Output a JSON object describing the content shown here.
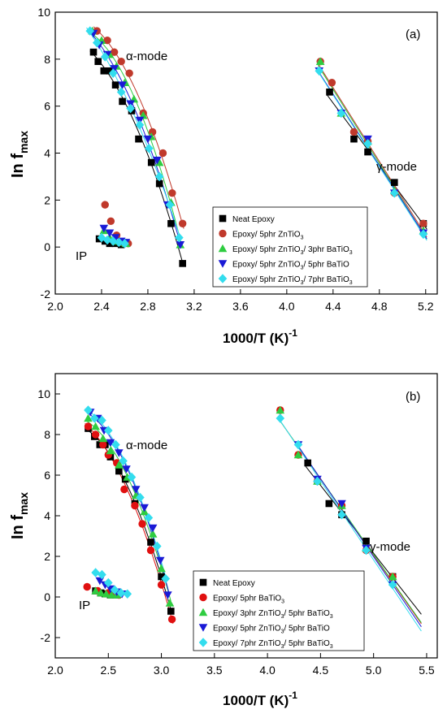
{
  "charts": [
    {
      "panel_label": "(a)",
      "ylabel": "In f",
      "ylabel_sub": "max",
      "xlabel": "1000/T (K)",
      "xlabel_sup": "-1",
      "annotations": [
        "α-mode",
        "γ-mode",
        "IP"
      ],
      "legend": [
        {
          "parts": [
            "Neat Epoxy"
          ]
        },
        {
          "parts": [
            "Epoxy/ 5phr ZnTiO",
            "3",
            ""
          ]
        },
        {
          "parts": [
            "Epoxy/ 5phr ZnTiO",
            "3",
            "/ 3phr BaTiO",
            "3",
            ""
          ]
        },
        {
          "parts": [
            "Epoxy/ 5phr ZnTiO",
            "3",
            "/ 5phr BaTiO"
          ]
        },
        {
          "parts": [
            "Epoxy/ 5phr ZnTiO",
            "3",
            "/ 7phr BaTiO",
            "3",
            ""
          ]
        }
      ]
    },
    {
      "panel_label": "(b)",
      "ylabel": "In f",
      "ylabel_sub": "max",
      "xlabel": "1000/T (K)",
      "xlabel_sup": "-1",
      "annotations": [
        "α-mode",
        "γ-mode",
        "IP"
      ],
      "legend": [
        {
          "parts": [
            "Neat Epoxy"
          ]
        },
        {
          "parts": [
            "Epoxy/ 5phr BaTiO",
            "3",
            ""
          ]
        },
        {
          "parts": [
            "Epoxy/ 3phr ZnTiO",
            "3",
            "/ 5phr BaTiO",
            "3",
            ""
          ]
        },
        {
          "parts": [
            "Epoxy/ 5phr ZnTiO",
            "3",
            "/ 5phr BaTiO"
          ]
        },
        {
          "parts": [
            "Epoxy/ 7phr ZnTiO",
            "3",
            "/ 5phr BaTiO",
            "3",
            ""
          ]
        }
      ]
    }
  ],
  "chart_data": [
    {
      "type": "scatter",
      "title": "(a)",
      "xlabel": "1000/T (K)-1",
      "ylabel": "In fmax",
      "xlim": [
        2.0,
        5.3
      ],
      "ylim": [
        -2,
        10
      ],
      "xticks": [
        "2.0",
        "2.4",
        "2.8",
        "3.2",
        "3.6",
        "4.0",
        "4.4",
        "4.8",
        "5.2"
      ],
      "yticks": [
        "-2",
        "0",
        "2",
        "4",
        "6",
        "8",
        "10"
      ],
      "legend_position": "lower-center",
      "grid": false,
      "series": [
        {
          "name": "Neat Epoxy",
          "color": "#000000",
          "marker": "square",
          "alpha": [
            [
              2.33,
              8.3
            ],
            [
              2.37,
              7.9
            ],
            [
              2.42,
              7.5
            ],
            [
              2.47,
              7.5
            ],
            [
              2.52,
              6.9
            ],
            [
              2.58,
              6.2
            ],
            [
              2.66,
              5.8
            ],
            [
              2.72,
              4.6
            ],
            [
              2.83,
              3.6
            ],
            [
              2.9,
              2.7
            ],
            [
              3.0,
              1.0
            ],
            [
              3.1,
              -0.7
            ]
          ],
          "ip": [
            [
              2.38,
              0.35
            ],
            [
              2.43,
              0.25
            ],
            [
              2.47,
              0.15
            ],
            [
              2.52,
              0.15
            ],
            [
              2.57,
              0.1
            ]
          ],
          "gamma": [
            [
              4.37,
              6.6
            ],
            [
              4.58,
              4.6
            ],
            [
              4.7,
              4.05
            ],
            [
              4.93,
              2.75
            ],
            [
              5.18,
              1.0
            ]
          ]
        },
        {
          "name": "Epoxy/ 5phr ZnTiO3",
          "color": "#c0392b",
          "marker": "circle",
          "alpha": [
            [
              2.36,
              9.2
            ],
            [
              2.45,
              8.8
            ],
            [
              2.51,
              8.3
            ],
            [
              2.57,
              7.9
            ],
            [
              2.64,
              7.4
            ],
            [
              2.76,
              5.7
            ],
            [
              2.84,
              4.9
            ],
            [
              2.93,
              4.0
            ],
            [
              3.01,
              2.3
            ],
            [
              3.1,
              1.0
            ]
          ],
          "ip": [
            [
              2.43,
              1.8
            ],
            [
              2.48,
              1.1
            ],
            [
              2.53,
              0.5
            ],
            [
              2.58,
              0.2
            ],
            [
              2.63,
              0.15
            ]
          ],
          "gamma": [
            [
              4.29,
              7.9
            ],
            [
              4.39,
              7.0
            ],
            [
              4.58,
              4.9
            ],
            [
              4.7,
              4.5
            ],
            [
              4.93,
              2.3
            ],
            [
              5.18,
              1.0
            ]
          ]
        },
        {
          "name": "Epoxy/ 5phr ZnTiO3/ 3phr BaTiO3",
          "color": "#2ecc40",
          "marker": "triangle-up",
          "alpha": [
            [
              2.32,
              9.2
            ],
            [
              2.4,
              8.8
            ],
            [
              2.47,
              8.2
            ],
            [
              2.53,
              7.7
            ],
            [
              2.6,
              7.0
            ],
            [
              2.68,
              6.3
            ],
            [
              2.76,
              5.6
            ],
            [
              2.83,
              4.7
            ],
            [
              2.9,
              3.6
            ],
            [
              3.0,
              1.9
            ],
            [
              3.08,
              0.1
            ]
          ],
          "ip": [
            [
              2.42,
              0.7
            ],
            [
              2.47,
              0.4
            ],
            [
              2.52,
              0.25
            ],
            [
              2.57,
              0.2
            ],
            [
              2.61,
              0.15
            ]
          ],
          "gamma": [
            [
              4.29,
              7.9
            ],
            [
              4.47,
              5.7
            ],
            [
              4.7,
              4.5
            ],
            [
              4.93,
              2.4
            ],
            [
              5.18,
              0.7
            ]
          ]
        },
        {
          "name": "Epoxy/ 5phr ZnTiO3/ 5phr BaTiO",
          "color": "#1a1ad6",
          "marker": "triangle-down",
          "alpha": [
            [
              2.33,
              9.1
            ],
            [
              2.38,
              8.6
            ],
            [
              2.45,
              8.2
            ],
            [
              2.51,
              7.6
            ],
            [
              2.58,
              6.9
            ],
            [
              2.65,
              6.1
            ],
            [
              2.73,
              5.4
            ],
            [
              2.8,
              4.6
            ],
            [
              2.88,
              3.7
            ],
            [
              2.97,
              1.8
            ],
            [
              3.08,
              0.1
            ]
          ],
          "ip": [
            [
              2.42,
              0.8
            ],
            [
              2.47,
              0.6
            ],
            [
              2.52,
              0.4
            ],
            [
              2.57,
              0.25
            ],
            [
              2.61,
              0.2
            ]
          ],
          "gamma": [
            [
              4.28,
              7.5
            ],
            [
              4.47,
              5.7
            ],
            [
              4.7,
              4.6
            ],
            [
              4.93,
              2.3
            ],
            [
              5.18,
              0.6
            ]
          ]
        },
        {
          "name": "Epoxy/ 5phr ZnTiO3/ 7phr BaTiO3",
          "color": "#33ddee",
          "marker": "diamond",
          "alpha": [
            [
              2.3,
              9.2
            ],
            [
              2.36,
              8.7
            ],
            [
              2.43,
              8.1
            ],
            [
              2.5,
              7.4
            ],
            [
              2.57,
              6.6
            ],
            [
              2.65,
              5.9
            ],
            [
              2.73,
              5.2
            ],
            [
              2.81,
              4.2
            ],
            [
              2.9,
              3.0
            ],
            [
              2.99,
              1.8
            ],
            [
              3.07,
              0.4
            ]
          ],
          "ip": [
            [
              2.4,
              0.4
            ],
            [
              2.45,
              0.3
            ],
            [
              2.5,
              0.25
            ],
            [
              2.55,
              0.2
            ],
            [
              2.6,
              0.15
            ]
          ],
          "gamma": [
            [
              4.28,
              7.5
            ],
            [
              4.47,
              5.7
            ],
            [
              4.7,
              4.4
            ],
            [
              4.93,
              2.3
            ],
            [
              5.18,
              0.55
            ]
          ]
        }
      ]
    },
    {
      "type": "scatter",
      "title": "(b)",
      "xlabel": "1000/T (K)-1",
      "ylabel": "In fmax",
      "xlim": [
        2.0,
        5.6
      ],
      "ylim": [
        -3,
        11
      ],
      "xticks": [
        "2.0",
        "2.5",
        "3.0",
        "3.5",
        "4.0",
        "4.5",
        "5.0",
        "5.5"
      ],
      "yticks": [
        "-2",
        "0",
        "2",
        "4",
        "6",
        "8",
        "10"
      ],
      "legend_position": "lower-center",
      "grid": false,
      "series": [
        {
          "name": "Neat Epoxy",
          "color": "#000000",
          "marker": "square",
          "alpha": [
            [
              2.31,
              8.3
            ],
            [
              2.37,
              7.9
            ],
            [
              2.42,
              7.5
            ],
            [
              2.47,
              7.5
            ],
            [
              2.52,
              6.9
            ],
            [
              2.6,
              6.2
            ],
            [
              2.66,
              5.8
            ],
            [
              2.75,
              4.6
            ],
            [
              2.9,
              2.7
            ],
            [
              3.0,
              1.0
            ],
            [
              3.09,
              -0.7
            ]
          ],
          "ip": [
            [
              2.38,
              0.3
            ],
            [
              2.43,
              0.2
            ],
            [
              2.47,
              0.15
            ],
            [
              2.52,
              0.1
            ],
            [
              2.57,
              0.1
            ]
          ],
          "gamma": [
            [
              4.38,
              6.6
            ],
            [
              4.58,
              4.6
            ],
            [
              4.7,
              4.05
            ],
            [
              4.93,
              2.75
            ],
            [
              5.18,
              1.0
            ]
          ]
        },
        {
          "name": "Epoxy/ 5phr BaTiO3",
          "color": "#e01010",
          "marker": "circle",
          "alpha": [
            [
              2.31,
              8.4
            ],
            [
              2.38,
              8.0
            ],
            [
              2.45,
              7.5
            ],
            [
              2.5,
              7.0
            ],
            [
              2.58,
              6.6
            ],
            [
              2.65,
              5.3
            ],
            [
              2.75,
              4.5
            ],
            [
              2.82,
              3.6
            ],
            [
              2.9,
              2.3
            ],
            [
              3.0,
              0.6
            ],
            [
              3.1,
              -1.1
            ]
          ],
          "ip": [
            [
              2.3,
              0.5
            ],
            [
              2.4,
              0.3
            ],
            [
              2.5,
              0.2
            ],
            [
              2.55,
              0.15
            ],
            [
              2.6,
              0.1
            ]
          ],
          "gamma": [
            [
              4.12,
              9.2
            ],
            [
              4.29,
              7.0
            ],
            [
              4.47,
              5.7
            ],
            [
              4.7,
              4.5
            ],
            [
              4.93,
              2.3
            ],
            [
              5.18,
              1.0
            ]
          ]
        },
        {
          "name": "Epoxy/ 3phr ZnTiO3/ 5phr BaTiO3",
          "color": "#2ecc40",
          "marker": "triangle-up",
          "alpha": [
            [
              2.31,
              8.8
            ],
            [
              2.38,
              8.4
            ],
            [
              2.45,
              7.8
            ],
            [
              2.52,
              7.2
            ],
            [
              2.6,
              6.5
            ],
            [
              2.68,
              5.9
            ],
            [
              2.76,
              5.0
            ],
            [
              2.84,
              4.2
            ],
            [
              2.92,
              3.1
            ],
            [
              3.0,
              1.4
            ],
            [
              3.08,
              -0.3
            ]
          ],
          "ip": [
            [
              2.38,
              0.3
            ],
            [
              2.43,
              0.2
            ],
            [
              2.48,
              0.15
            ],
            [
              2.53,
              0.1
            ],
            [
              2.58,
              0.1
            ]
          ],
          "gamma": [
            [
              4.12,
              9.2
            ],
            [
              4.29,
              7.0
            ],
            [
              4.47,
              5.7
            ],
            [
              4.7,
              4.5
            ],
            [
              4.93,
              2.4
            ],
            [
              5.18,
              1.0
            ]
          ]
        },
        {
          "name": "Epoxy/ 5phr ZnTiO3/ 5phr BaTiO",
          "color": "#1a1ad6",
          "marker": "triangle-down",
          "alpha": [
            [
              2.33,
              9.1
            ],
            [
              2.4,
              8.8
            ],
            [
              2.46,
              8.2
            ],
            [
              2.52,
              7.6
            ],
            [
              2.6,
              7.1
            ],
            [
              2.67,
              6.3
            ],
            [
              2.76,
              5.3
            ],
            [
              2.84,
              4.4
            ],
            [
              2.92,
              3.4
            ],
            [
              2.99,
              1.8
            ],
            [
              3.06,
              0.1
            ]
          ],
          "ip": [
            [
              2.42,
              0.8
            ],
            [
              2.47,
              0.6
            ],
            [
              2.52,
              0.4
            ],
            [
              2.58,
              0.25
            ],
            [
              2.63,
              0.15
            ]
          ],
          "gamma": [
            [
              4.29,
              7.5
            ],
            [
              4.47,
              5.8
            ],
            [
              4.7,
              4.6
            ],
            [
              4.93,
              2.4
            ],
            [
              5.18,
              0.6
            ]
          ]
        },
        {
          "name": "Epoxy/ 7phr ZnTiO3/ 5phr BaTiO3",
          "color": "#33ddee",
          "marker": "diamond",
          "alpha": [
            [
              2.31,
              9.2
            ],
            [
              2.37,
              8.8
            ],
            [
              2.44,
              8.7
            ],
            [
              2.5,
              8.2
            ],
            [
              2.57,
              7.5
            ],
            [
              2.64,
              6.7
            ],
            [
              2.72,
              5.9
            ],
            [
              2.8,
              4.9
            ],
            [
              2.88,
              3.9
            ],
            [
              2.96,
              2.5
            ],
            [
              3.04,
              0.9
            ]
          ],
          "ip": [
            [
              2.38,
              1.2
            ],
            [
              2.44,
              1.1
            ],
            [
              2.5,
              0.7
            ],
            [
              2.56,
              0.35
            ],
            [
              2.62,
              0.2
            ],
            [
              2.68,
              0.15
            ]
          ],
          "gamma": [
            [
              4.12,
              8.8
            ],
            [
              4.29,
              7.5
            ],
            [
              4.47,
              5.7
            ],
            [
              4.7,
              4.05
            ],
            [
              4.93,
              2.3
            ],
            [
              5.18,
              0.6
            ]
          ]
        }
      ]
    }
  ]
}
